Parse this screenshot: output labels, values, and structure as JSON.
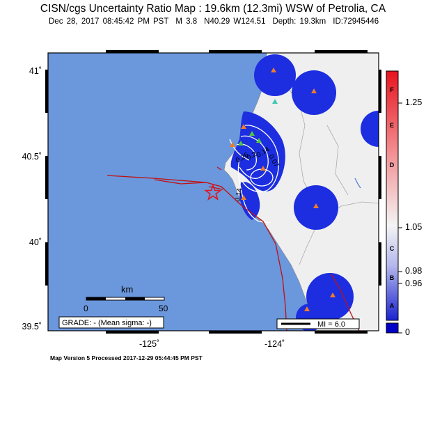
{
  "header": {
    "title": "CISN/cgs Uncertainty Ratio Map : 19.6km (12.3mi) WSW of Petrolia, CA",
    "date": "Dec 28, 2017 08:45:42 PM PST",
    "magnitude": "M 3.8",
    "location": "N40.29 W124.51",
    "depth": "Depth: 19.3km",
    "id": "ID:72945446"
  },
  "axes": {
    "lat_labels": [
      "41˚",
      "40.5˚",
      "40˚",
      "39.5˚"
    ],
    "lon_labels": [
      "-125˚",
      "-124˚"
    ]
  },
  "scale_bar": {
    "unit": "km",
    "min": "0",
    "max": "50"
  },
  "grade_box": "GRADE: - (Mean sigma: -)",
  "legend_box": "MI = 6.0",
  "contours": [
    "0.26",
    "0.2",
    "0.14",
    "0.07",
    "0.14"
  ],
  "colorbar": {
    "letters": [
      "F",
      "E",
      "D",
      "C",
      "B",
      "A"
    ],
    "ticks": [
      "1.25",
      "1.05",
      "0.98",
      "0.96",
      "0"
    ],
    "colors": {
      "top": "#e8141e",
      "mid": "#f4f4f4",
      "bottom": "#1a22d0",
      "base": "#0000c8"
    }
  },
  "map_colors": {
    "ocean": "#6b97dc",
    "land": "#efefef",
    "fault": "#c01010",
    "station_orange": "#f07c28",
    "station_teal": "#40c8b0",
    "station_green": "#50c840",
    "ratio_blue": "#1c2ee0"
  },
  "footer": "Map Version 5 Processed 2017-12-29 05:44:45 PM PST"
}
